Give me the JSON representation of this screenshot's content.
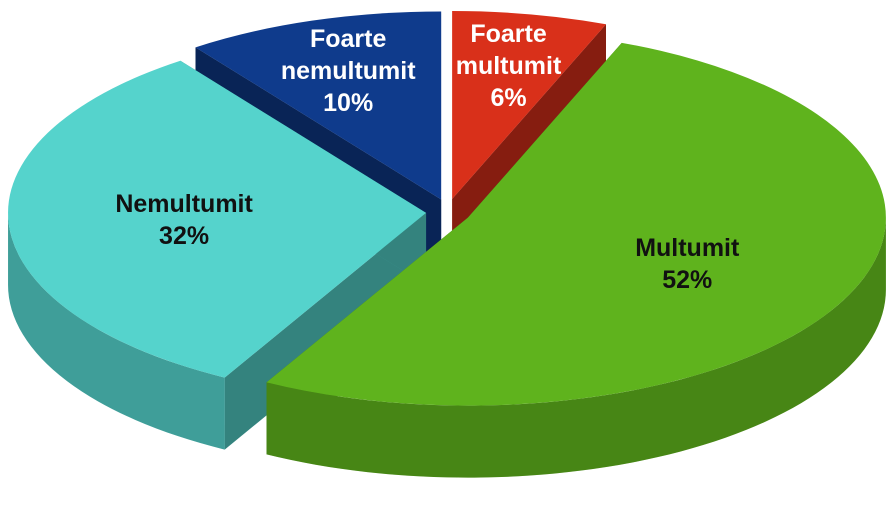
{
  "chart_data": {
    "type": "pie3d",
    "categories": [
      "Foarte multumit",
      "Multumit",
      "Nemultumit",
      "Foarte nemultumit"
    ],
    "values": [
      6,
      52,
      32,
      10
    ],
    "value_labels": [
      "6%",
      "52%",
      "32%",
      "10%"
    ],
    "colors": [
      "#d9301a",
      "#5fb31d",
      "#55d3cc",
      "#0f3b8c"
    ],
    "exploded": true
  }
}
